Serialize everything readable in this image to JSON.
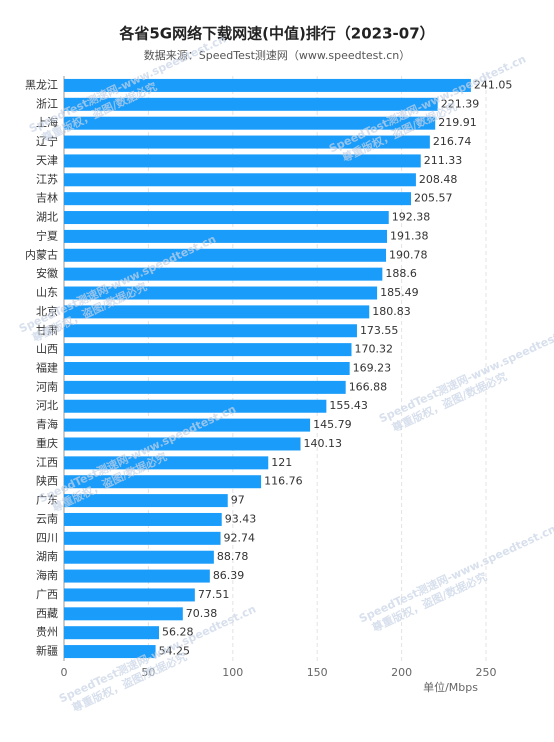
{
  "chart_data": {
    "type": "hbar",
    "title": "各省5G网络下载网速(中值)排行（2023-07）",
    "subtitle": "数据来源：SpeedTest测速网（www.speedtest.cn）",
    "x_axis_label": "单位/Mbps",
    "watermark": [
      "SpeedTest测速网-www.speedtest.cn",
      "尊重版权，盗图/数据必究"
    ],
    "categories": [
      "黑龙江",
      "浙江",
      "上海",
      "辽宁",
      "天津",
      "江苏",
      "吉林",
      "湖北",
      "宁夏",
      "内蒙古",
      "安徽",
      "山东",
      "北京",
      "甘肃",
      "山西",
      "福建",
      "河南",
      "河北",
      "青海",
      "重庆",
      "江西",
      "陕西",
      "广东",
      "云南",
      "四川",
      "湖南",
      "海南",
      "广西",
      "西藏",
      "贵州",
      "新疆"
    ],
    "values": [
      241.05,
      221.39,
      219.91,
      216.74,
      211.33,
      208.48,
      205.57,
      192.38,
      191.38,
      190.78,
      188.6,
      185.49,
      180.83,
      173.55,
      170.32,
      169.23,
      166.88,
      155.43,
      145.79,
      140.13,
      121,
      116.76,
      97,
      93.43,
      92.74,
      88.78,
      86.39,
      77.51,
      70.38,
      56.28,
      54.25
    ],
    "color": "#1a9cfa",
    "xlim": [
      0,
      250
    ],
    "xticks": [
      0,
      50,
      100,
      150,
      200,
      250
    ],
    "grid": true
  }
}
